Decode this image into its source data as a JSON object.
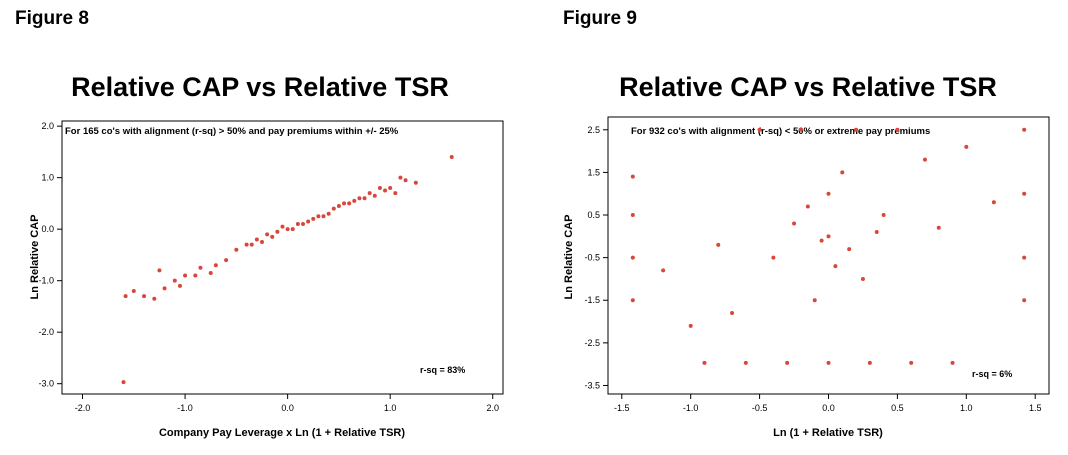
{
  "figures": [
    {
      "figure_label": "Figure 8",
      "chart_title": "Relative CAP vs Relative TSR",
      "annotation": "For 165 co's with alignment (r-sq) > 50% and pay premiums within +/- 25%",
      "rsq_label": "r-sq = 83%"
    },
    {
      "figure_label": "Figure 9",
      "chart_title": "Relative CAP vs Relative TSR",
      "annotation": "For 932 co's with alignment (r-sq) < 50% or extreme pay premiums",
      "rsq_label": "r-sq = 6%"
    }
  ],
  "chart_data": [
    {
      "type": "scatter",
      "title": "Relative CAP vs Relative TSR",
      "xlabel": "Company Pay Leverage x Ln (1 + Relative TSR)",
      "ylabel": "Ln Relative CAP",
      "xlim": [
        -2.2,
        2.1
      ],
      "ylim": [
        -3.2,
        2.1
      ],
      "x_ticks": [
        -2.0,
        -1.0,
        0.0,
        1.0,
        2.0
      ],
      "x_tick_labels": [
        "-2.0",
        "-1.0",
        "0.0",
        "1.0",
        "2.0"
      ],
      "y_ticks": [
        2.0,
        1.0,
        0.0,
        -1.0,
        -2.0,
        -3.0
      ],
      "y_tick_labels": [
        "2.0",
        "1.0",
        "0.0",
        "-1.0",
        "-2.0",
        "-3.0"
      ],
      "marker_color": "#d9473a",
      "points_x": [
        -1.6,
        1.6,
        1.25,
        1.1,
        0.95,
        0.8,
        -1.5,
        -1.3,
        -1.25,
        -1.1,
        -0.85,
        -0.6,
        -0.9,
        -0.5,
        -0.4,
        -0.3,
        -0.2,
        -0.1,
        0.0,
        0.1,
        0.2,
        0.3,
        0.4,
        0.5,
        0.6,
        0.7,
        -0.25,
        -0.15,
        -0.05,
        0.05,
        0.15,
        0.25,
        0.35,
        -0.35,
        0.45,
        0.55,
        0.65,
        0.75,
        0.85,
        -0.7,
        -0.75,
        -1.0,
        -1.05,
        -1.2,
        -1.4,
        -1.58,
        0.9,
        1.0,
        1.05,
        1.15
      ],
      "points_y": [
        -2.97,
        1.4,
        0.9,
        1.0,
        0.75,
        0.7,
        -1.2,
        -1.35,
        -0.8,
        -1.0,
        -0.75,
        -0.6,
        -0.9,
        -0.4,
        -0.3,
        -0.2,
        -0.1,
        -0.05,
        0.0,
        0.1,
        0.15,
        0.25,
        0.3,
        0.45,
        0.5,
        0.6,
        -0.25,
        -0.15,
        0.05,
        0.0,
        0.1,
        0.2,
        0.25,
        -0.3,
        0.4,
        0.5,
        0.55,
        0.6,
        0.65,
        -0.7,
        -0.85,
        -0.9,
        -1.1,
        -1.15,
        -1.3,
        -1.3,
        0.8,
        0.8,
        0.7,
        0.95
      ],
      "grid": false
    },
    {
      "type": "scatter",
      "title": "Relative CAP vs Relative TSR",
      "xlabel": "Ln (1 + Relative TSR)",
      "ylabel": "Ln Relative CAP",
      "xlim": [
        -1.6,
        1.6
      ],
      "ylim": [
        -3.7,
        2.8
      ],
      "x_ticks": [
        -1.5,
        -1.0,
        -0.5,
        0.0,
        0.5,
        1.0,
        1.5
      ],
      "x_tick_labels": [
        "-1.5",
        "-1.0",
        "-0.5",
        "0.0",
        "0.5",
        "1.0",
        "1.5"
      ],
      "y_ticks": [
        2.5,
        1.5,
        0.5,
        -0.5,
        -1.5,
        -2.5,
        -3.5
      ],
      "y_tick_labels": [
        "2.5",
        "1.5",
        "0.5",
        "-0.5",
        "-1.5",
        "-2.5",
        "-3.5"
      ],
      "marker_color": "#d9473a",
      "points_x": [
        -1.42,
        -1.42,
        -1.42,
        -1.42,
        1.42,
        1.42,
        1.42,
        1.42,
        -0.9,
        -0.6,
        -0.3,
        0.0,
        0.3,
        0.6,
        0.9,
        -0.2,
        0.2,
        0.5,
        -0.5,
        0.1,
        -0.1,
        0.0,
        0.4,
        -0.4,
        0.8,
        -0.8,
        1.2,
        -1.2,
        0.0,
        0.25,
        -0.25,
        0.15,
        -0.15,
        0.05,
        -0.05,
        0.7,
        -0.7,
        1.0,
        -1.0,
        0.35
      ],
      "points_y": [
        1.4,
        0.5,
        -0.5,
        -1.5,
        2.5,
        1.0,
        -0.5,
        -1.5,
        -2.97,
        -2.97,
        -2.97,
        -2.97,
        -2.97,
        -2.97,
        -2.97,
        2.5,
        2.5,
        2.5,
        2.5,
        1.5,
        -1.5,
        0.0,
        0.5,
        -0.5,
        0.2,
        -0.2,
        0.8,
        -0.8,
        1.0,
        -1.0,
        0.3,
        -0.3,
        0.7,
        -0.7,
        -0.1,
        1.8,
        -1.8,
        2.1,
        -2.1,
        0.1
      ],
      "grid": false
    }
  ]
}
